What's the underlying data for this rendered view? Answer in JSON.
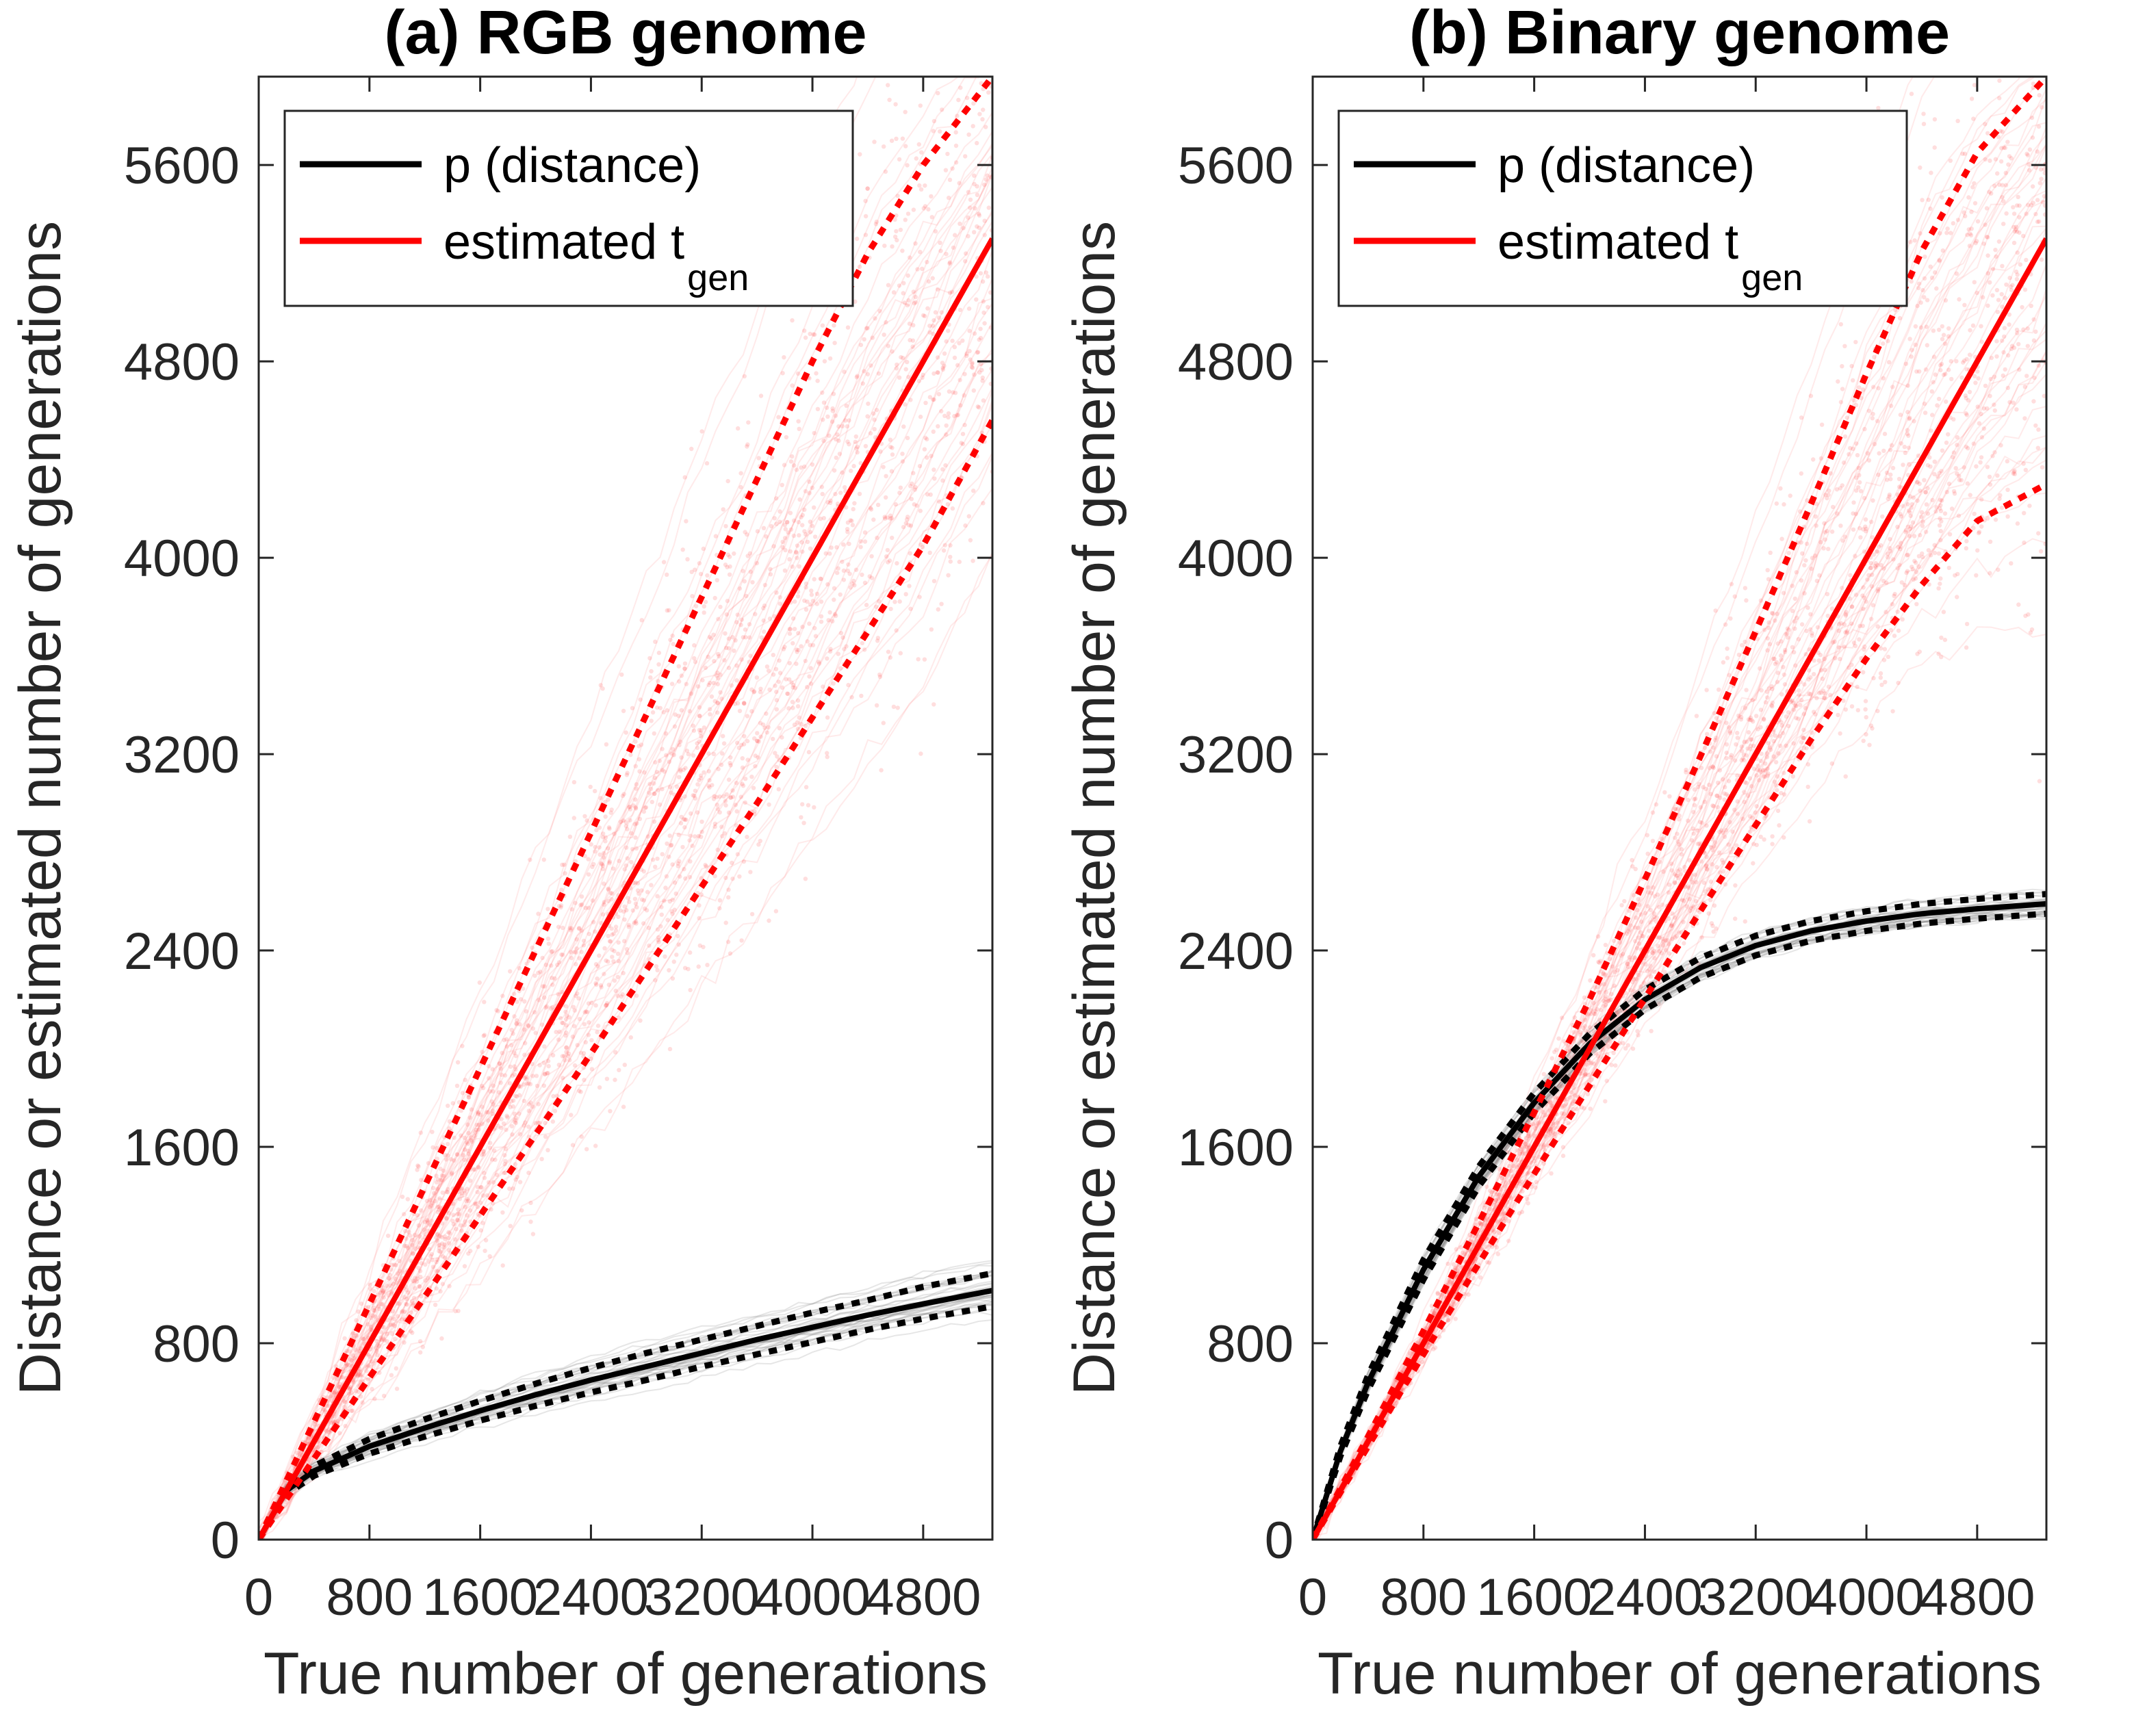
{
  "chart_data": [
    {
      "type": "line",
      "title": "(a) RGB genome",
      "xlabel": "True number of generations",
      "ylabel": "Distance or estimated number of generations",
      "xlim": [
        0,
        5300
      ],
      "ylim": [
        0,
        5960
      ],
      "xticks": [
        0,
        800,
        1600,
        2400,
        3200,
        4000,
        4800
      ],
      "xtick_labels": [
        "0",
        "800",
        "1600",
        "2400",
        "3200",
        "4000",
        "4800"
      ],
      "yticks": [
        0,
        800,
        1600,
        2400,
        3200,
        4000,
        4800,
        5600
      ],
      "ytick_labels": [
        "0",
        "800",
        "1600",
        "2400",
        "3200",
        "4000",
        "4800",
        "5600"
      ],
      "legend": {
        "position": "top-left",
        "entries": [
          {
            "label": "p (distance)",
            "color": "#000000"
          },
          {
            "label": "estimated t",
            "sub": "gen",
            "color": "#ff0000"
          }
        ]
      },
      "x": [
        0,
        200,
        400,
        800,
        1200,
        1600,
        2000,
        2400,
        2800,
        3200,
        3600,
        4000,
        4400,
        4800,
        5300
      ],
      "series": [
        {
          "name": "p (distance)",
          "role": "mean",
          "color": "#000000",
          "values": [
            0,
            200,
            280,
            380,
            455,
            525,
            590,
            650,
            705,
            760,
            815,
            865,
            915,
            960,
            1015
          ]
        },
        {
          "role": "upper",
          "style": "dotted",
          "color": "#000000",
          "values": [
            0,
            215,
            300,
            410,
            490,
            565,
            635,
            700,
            760,
            815,
            870,
            925,
            975,
            1030,
            1085
          ]
        },
        {
          "role": "lower",
          "style": "dotted",
          "color": "#000000",
          "values": [
            0,
            185,
            260,
            350,
            420,
            485,
            545,
            600,
            650,
            705,
            755,
            805,
            855,
            900,
            950
          ]
        },
        {
          "name": "estimated t_gen",
          "role": "mean",
          "color": "#ff0000",
          "values": [
            0,
            200,
            400,
            800,
            1200,
            1600,
            2000,
            2400,
            2800,
            3200,
            3600,
            4000,
            4400,
            4800,
            5300
          ]
        },
        {
          "role": "upper",
          "style": "dotted",
          "color": "#ff0000",
          "values": [
            0,
            240,
            480,
            960,
            1440,
            1920,
            2400,
            2880,
            3360,
            3840,
            4320,
            4800,
            5240,
            5600,
            5960
          ]
        },
        {
          "role": "lower",
          "style": "dotted",
          "color": "#ff0000",
          "values": [
            0,
            165,
            330,
            660,
            990,
            1320,
            1650,
            1980,
            2320,
            2660,
            3000,
            3350,
            3700,
            4050,
            4560
          ]
        }
      ],
      "band": {
        "type": "simulation-scatter",
        "color": "#ff4444",
        "lower_factor": 0.65,
        "upper_factor": 1.25
      }
    },
    {
      "type": "line",
      "title": "(b) Binary genome",
      "xlabel": "True number of generations",
      "ylabel": "Distance or estimated number of generations",
      "xlim": [
        0,
        5300
      ],
      "ylim": [
        0,
        5960
      ],
      "xticks": [
        0,
        800,
        1600,
        2400,
        3200,
        4000,
        4800
      ],
      "xtick_labels": [
        "0",
        "800",
        "1600",
        "2400",
        "3200",
        "4000",
        "4800"
      ],
      "yticks": [
        0,
        800,
        1600,
        2400,
        3200,
        4000,
        4800,
        5600
      ],
      "ytick_labels": [
        "0",
        "800",
        "1600",
        "2400",
        "3200",
        "4000",
        "4800",
        "5600"
      ],
      "legend": {
        "position": "top-left",
        "entries": [
          {
            "label": "p (distance)",
            "color": "#000000"
          },
          {
            "label": "estimated t",
            "sub": "gen",
            "color": "#ff0000"
          }
        ]
      },
      "x": [
        0,
        200,
        400,
        800,
        1200,
        1600,
        2000,
        2400,
        2800,
        3200,
        3600,
        4000,
        4400,
        4800,
        5300
      ],
      "series": [
        {
          "name": "p (distance)",
          "role": "mean",
          "color": "#000000",
          "values": [
            0,
            360,
            640,
            1100,
            1480,
            1780,
            2020,
            2200,
            2330,
            2420,
            2480,
            2520,
            2550,
            2570,
            2590
          ]
        },
        {
          "role": "upper",
          "style": "dotted",
          "color": "#000000",
          "values": [
            0,
            380,
            670,
            1140,
            1520,
            1820,
            2060,
            2240,
            2370,
            2460,
            2520,
            2560,
            2590,
            2610,
            2630
          ]
        },
        {
          "role": "lower",
          "style": "dotted",
          "color": "#000000",
          "values": [
            0,
            340,
            610,
            1060,
            1440,
            1740,
            1980,
            2160,
            2290,
            2380,
            2440,
            2480,
            2510,
            2530,
            2550
          ]
        },
        {
          "name": "estimated t_gen",
          "role": "mean",
          "color": "#ff0000",
          "values": [
            0,
            200,
            400,
            800,
            1200,
            1600,
            2000,
            2400,
            2800,
            3200,
            3600,
            4000,
            4400,
            4800,
            5300
          ]
        },
        {
          "role": "upper",
          "style": "dotted",
          "color": "#ff0000",
          "values": [
            0,
            208,
            420,
            850,
            1290,
            1740,
            2200,
            2690,
            3190,
            3700,
            4220,
            4750,
            5250,
            5650,
            5960
          ]
        },
        {
          "role": "lower",
          "style": "dotted",
          "color": "#ff0000",
          "values": [
            0,
            192,
            380,
            755,
            1125,
            1490,
            1850,
            2205,
            2560,
            2910,
            3260,
            3590,
            3890,
            4150,
            4300
          ]
        }
      ],
      "band": {
        "type": "simulation-scatter",
        "color": "#ff4444",
        "lower_factor": 0.72,
        "upper_factor": 1.3
      }
    }
  ]
}
